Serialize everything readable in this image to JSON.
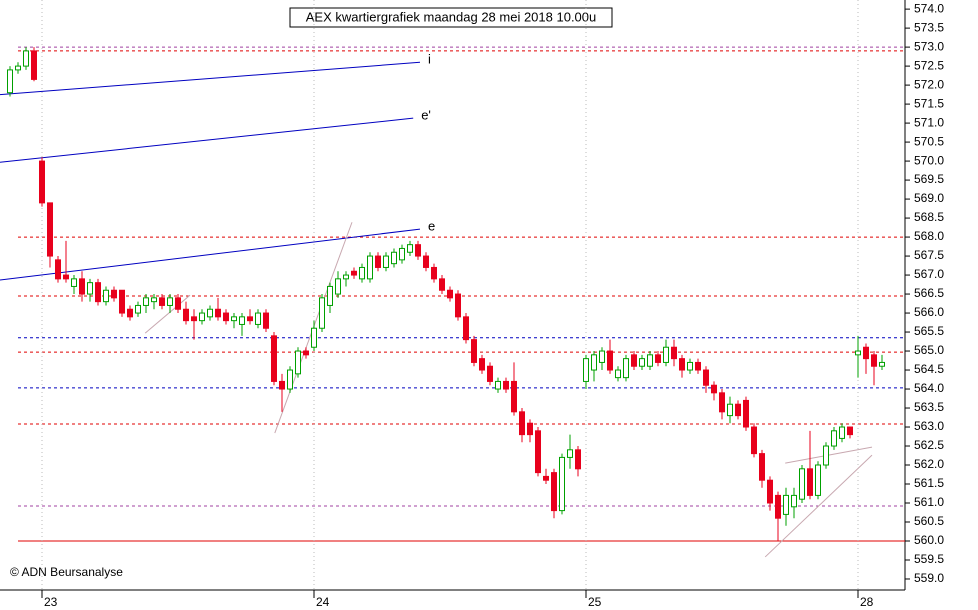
{
  "chart_data": {
    "type": "candlestick",
    "title": "AEX kwartiergrafiek maandag 28 mei 2018 10.00u",
    "copyright": "© ADN Beursanalyse",
    "up_color": "#00a000",
    "down_color": "#e8001c",
    "categories": [
      null,
      null,
      null,
      null,
      "23",
      null,
      null,
      null,
      null,
      null,
      null,
      null,
      null,
      null,
      null,
      null,
      null,
      null,
      null,
      null,
      null,
      null,
      null,
      null,
      null,
      null,
      null,
      null,
      null,
      null,
      null,
      null,
      null,
      null,
      null,
      null,
      null,
      null,
      "24",
      null,
      null,
      null,
      null,
      null,
      null,
      null,
      null,
      null,
      null,
      null,
      null,
      null,
      null,
      null,
      null,
      null,
      null,
      null,
      null,
      null,
      null,
      null,
      null,
      null,
      null,
      null,
      null,
      null,
      null,
      null,
      null,
      null,
      "25",
      null,
      null,
      null,
      null,
      null,
      null,
      null,
      null,
      null,
      null,
      null,
      null,
      null,
      null,
      null,
      null,
      null,
      null,
      null,
      null,
      null,
      null,
      null,
      null,
      null,
      null,
      null,
      null,
      null,
      null,
      null,
      null,
      null,
      "28",
      null,
      null,
      null
    ],
    "open": [
      571.8,
      572.4,
      572.5,
      572.9,
      570.0,
      568.9,
      567.4,
      567.0,
      566.7,
      566.9,
      566.5,
      566.8,
      566.3,
      566.6,
      566.6,
      566.1,
      566.0,
      566.2,
      566.3,
      566.4,
      566.2,
      566.4,
      566.1,
      565.9,
      565.8,
      565.9,
      566.1,
      566.0,
      565.8,
      565.7,
      565.9,
      565.7,
      566.0,
      565.4,
      564.2,
      564.0,
      564.4,
      565.0,
      565.1,
      565.6,
      566.2,
      566.5,
      566.9,
      567.1,
      566.9,
      566.9,
      567.5,
      567.2,
      567.3,
      567.4,
      567.6,
      567.8,
      567.5,
      567.2,
      566.9,
      566.6,
      566.5,
      565.9,
      565.3,
      564.8,
      564.6,
      564.0,
      564.2,
      564.2,
      563.4,
      563.1,
      562.9,
      561.7,
      561.8,
      560.8,
      562.2,
      562.4,
      564.2,
      564.5,
      564.7,
      565.0,
      564.3,
      564.3,
      564.9,
      564.6,
      564.6,
      564.9,
      564.7,
      565.1,
      564.8,
      564.5,
      564.7,
      564.5,
      564.1,
      563.9,
      563.3,
      563.6,
      563.7,
      563.0,
      562.3,
      561.6,
      561.2,
      560.7,
      560.9,
      561.1,
      561.9,
      561.2,
      562.0,
      562.5,
      562.7,
      563.0,
      564.9,
      565.1,
      564.9,
      564.6
    ],
    "high": [
      572.5,
      572.6,
      573.0,
      573.0,
      570.1,
      568.9,
      567.5,
      567.9,
      567.0,
      567.1,
      566.9,
      566.9,
      566.7,
      566.7,
      566.6,
      566.2,
      566.3,
      566.5,
      566.5,
      566.5,
      566.5,
      566.5,
      566.3,
      566.1,
      566.1,
      566.2,
      566.4,
      566.1,
      566.0,
      566.0,
      566.1,
      566.1,
      566.1,
      565.5,
      564.4,
      564.6,
      565.1,
      565.1,
      565.8,
      566.5,
      566.8,
      567.1,
      567.1,
      567.2,
      567.3,
      567.6,
      567.6,
      567.6,
      567.7,
      567.8,
      567.9,
      567.9,
      567.6,
      567.3,
      567.0,
      566.7,
      566.6,
      566.0,
      565.4,
      564.9,
      564.7,
      564.3,
      564.3,
      564.7,
      563.5,
      563.2,
      563.0,
      561.9,
      561.9,
      562.3,
      562.8,
      562.5,
      564.9,
      565.0,
      565.1,
      565.3,
      564.6,
      564.9,
      565.0,
      564.9,
      565.0,
      565.0,
      565.3,
      565.3,
      564.9,
      564.8,
      564.8,
      564.6,
      564.2,
      564.0,
      563.8,
      563.7,
      563.8,
      563.1,
      562.4,
      561.7,
      561.3,
      561.4,
      561.4,
      562.0,
      562.9,
      562.1,
      562.6,
      563.0,
      563.1,
      563.0,
      565.4,
      565.2,
      565.0,
      564.9
    ],
    "low": [
      571.7,
      572.3,
      572.4,
      572.1,
      568.8,
      567.2,
      566.8,
      566.8,
      566.5,
      566.3,
      566.3,
      566.2,
      566.2,
      566.3,
      565.9,
      565.8,
      565.9,
      566.0,
      566.1,
      566.1,
      566.0,
      566.0,
      565.7,
      565.3,
      565.7,
      565.8,
      565.8,
      565.7,
      565.6,
      565.4,
      565.7,
      565.6,
      565.5,
      564.1,
      563.4,
      563.9,
      564.3,
      564.8,
      565.0,
      565.5,
      566.0,
      566.4,
      566.7,
      566.9,
      566.8,
      566.8,
      567.1,
      567.1,
      567.2,
      567.3,
      567.5,
      567.4,
      567.1,
      566.8,
      566.5,
      566.3,
      565.8,
      565.2,
      564.6,
      564.4,
      564.1,
      563.9,
      563.9,
      563.3,
      562.6,
      562.6,
      561.7,
      561.5,
      560.6,
      560.7,
      561.9,
      561.7,
      564.0,
      564.2,
      564.5,
      564.4,
      564.2,
      564.2,
      564.5,
      564.5,
      564.5,
      564.6,
      564.6,
      564.6,
      564.3,
      564.4,
      564.4,
      563.9,
      563.7,
      563.2,
      563.1,
      563.2,
      562.9,
      562.2,
      561.4,
      560.8,
      560.0,
      560.4,
      560.6,
      561.0,
      561.1,
      561.1,
      561.9,
      562.4,
      562.6,
      562.7,
      564.3,
      564.4,
      564.1,
      564.5
    ],
    "close": [
      572.4,
      572.5,
      572.9,
      572.15,
      568.9,
      567.5,
      566.9,
      566.9,
      566.9,
      566.5,
      566.8,
      566.3,
      566.6,
      566.4,
      566.0,
      565.9,
      566.2,
      566.4,
      566.4,
      566.2,
      566.4,
      566.1,
      565.8,
      565.8,
      566.0,
      566.1,
      565.9,
      565.8,
      565.9,
      565.9,
      565.8,
      566.0,
      565.6,
      564.2,
      564.0,
      564.5,
      565.0,
      564.9,
      565.6,
      566.4,
      566.7,
      566.9,
      567.0,
      567.0,
      567.2,
      567.5,
      567.2,
      567.5,
      567.6,
      567.7,
      567.8,
      567.5,
      567.2,
      566.9,
      566.6,
      566.4,
      565.9,
      565.3,
      564.7,
      564.5,
      564.2,
      564.2,
      564.0,
      563.4,
      562.8,
      562.8,
      561.8,
      561.6,
      560.8,
      562.2,
      562.4,
      561.9,
      564.8,
      564.9,
      565.0,
      564.5,
      564.5,
      564.8,
      564.6,
      564.8,
      564.9,
      564.7,
      565.1,
      564.8,
      564.5,
      564.7,
      564.5,
      564.1,
      563.9,
      563.4,
      563.6,
      563.3,
      563.0,
      562.3,
      561.6,
      561.0,
      560.6,
      561.2,
      561.2,
      561.9,
      561.2,
      562.0,
      562.5,
      562.9,
      563.0,
      562.8,
      565.0,
      564.8,
      564.6,
      564.7
    ],
    "ylim": [
      558.71,
      574.24
    ],
    "yticks": [
      {
        "value": 559,
        "label": "559.0"
      },
      {
        "value": 559.5,
        "label": "559.5"
      },
      {
        "value": 560,
        "label": "560.0"
      },
      {
        "value": 560.5,
        "label": "560.5"
      },
      {
        "value": 561,
        "label": "561.0"
      },
      {
        "value": 561.5,
        "label": "561.5"
      },
      {
        "value": 562,
        "label": "562.0"
      },
      {
        "value": 562.5,
        "label": "562.5"
      },
      {
        "value": 563,
        "label": "563.0"
      },
      {
        "value": 563.5,
        "label": "563.5"
      },
      {
        "value": 564,
        "label": "564.0"
      },
      {
        "value": 564.5,
        "label": "564.5"
      },
      {
        "value": 565,
        "label": "565.0"
      },
      {
        "value": 565.5,
        "label": "565.5"
      },
      {
        "value": 566,
        "label": "566.0"
      },
      {
        "value": 566.5,
        "label": "566.5"
      },
      {
        "value": 567,
        "label": "567.0"
      },
      {
        "value": 567.5,
        "label": "567.5"
      },
      {
        "value": 568,
        "label": "568.0"
      },
      {
        "value": 568.5,
        "label": "568.5"
      },
      {
        "value": 569,
        "label": "569.0"
      },
      {
        "value": 569.5,
        "label": "569.5"
      },
      {
        "value": 570,
        "label": "570.0"
      },
      {
        "value": 570.5,
        "label": "570.5"
      },
      {
        "value": 571,
        "label": "571.0"
      },
      {
        "value": 571.5,
        "label": "571.5"
      },
      {
        "value": 572,
        "label": "572.0"
      },
      {
        "value": 572.5,
        "label": "572.5"
      },
      {
        "value": 573,
        "label": "573.0"
      },
      {
        "value": 573.5,
        "label": "573.5"
      },
      {
        "value": 574,
        "label": "574.0"
      }
    ],
    "levels": [
      {
        "value": 573.0,
        "color": "#a040a0",
        "dashed": true
      },
      {
        "value": 572.9,
        "color": "#e00000",
        "dashed": true
      },
      {
        "value": 568.0,
        "color": "#e00000",
        "dashed": true
      },
      {
        "value": 566.45,
        "color": "#e00000",
        "dashed": true
      },
      {
        "value": 565.35,
        "color": "#0000c0",
        "dashed": true
      },
      {
        "value": 564.97,
        "color": "#e00000",
        "dashed": true
      },
      {
        "value": 564.03,
        "color": "#0000c0",
        "dashed": true
      },
      {
        "value": 563.08,
        "color": "#e00000",
        "dashed": true
      },
      {
        "value": 560.92,
        "color": "#a040a0",
        "dashed": true
      },
      {
        "value": 560.0,
        "color": "#e00000",
        "dashed": false
      }
    ],
    "trendlines": [
      {
        "label": "i",
        "color": "#0000c0",
        "x": [
          -1.25,
          51.25
        ],
        "y": [
          571.75,
          572.6
        ]
      },
      {
        "label": "e'",
        "color": "#0000c0",
        "x": [
          -1.25,
          50.4
        ],
        "y": [
          569.97,
          571.13
        ]
      },
      {
        "label": "e",
        "color": "#0000c0",
        "x": [
          -1.25,
          51.25
        ],
        "y": [
          566.87,
          568.21
        ]
      },
      {
        "color": "#c8a8b0",
        "x": [
          16.9,
          22.5
        ],
        "y": [
          565.47,
          566.47
        ]
      },
      {
        "color": "#c8a8b0",
        "x": [
          33.1,
          42.75
        ],
        "y": [
          562.84,
          568.39
        ]
      },
      {
        "color": "#c8a8b0",
        "x": [
          94.4,
          107.75
        ],
        "y": [
          559.58,
          562.26
        ]
      },
      {
        "color": "#c8a8b0",
        "x": [
          96.9,
          107.75
        ],
        "y": [
          562.05,
          562.47
        ]
      }
    ]
  }
}
